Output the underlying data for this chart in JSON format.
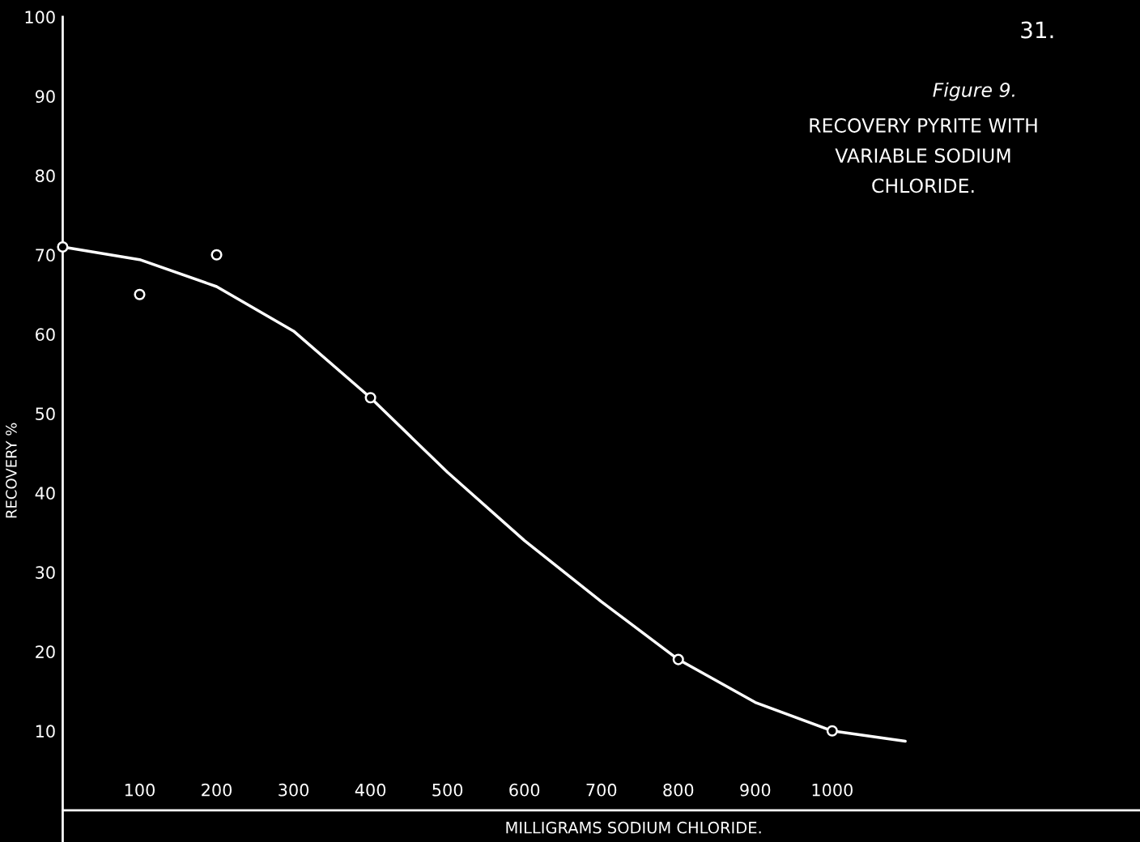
{
  "chart_data": {
    "type": "scatter",
    "title": "Figure 9.",
    "subtitle": "RECOVERY PYRITE WITH\nVARIABLE SODIUM\nCHLORIDE.",
    "xlabel": "MILLIGRAMS SODIUM CHLORIDE.",
    "ylabel": "RECOVERY %",
    "annotations": [
      "31."
    ],
    "series": [
      {
        "color": "#ffffff",
        "marker": "circle",
        "x": [
          0,
          100,
          200,
          400,
          800,
          1000
        ],
        "values": [
          71,
          65,
          70,
          52,
          19,
          10
        ]
      },
      {
        "type": "line",
        "color": "#ffffff",
        "marker": "none",
        "line_style": "solid",
        "x": [
          0,
          100,
          200,
          300,
          400,
          500,
          600,
          700,
          800,
          900,
          1000,
          1095
        ],
        "values": [
          71,
          69.4,
          66,
          60.4,
          52,
          42.6,
          34,
          26.3,
          19,
          13.6,
          10,
          8.7
        ]
      }
    ],
    "xlim": [
      0,
      1400
    ],
    "ylim": [
      -4,
      100
    ],
    "xticks": [
      100,
      200,
      300,
      400,
      500,
      600,
      700,
      800,
      900,
      1000
    ],
    "yticks": [
      10,
      20,
      30,
      40,
      50,
      60,
      70,
      80,
      90,
      100
    ],
    "grid": false,
    "legend": false
  }
}
